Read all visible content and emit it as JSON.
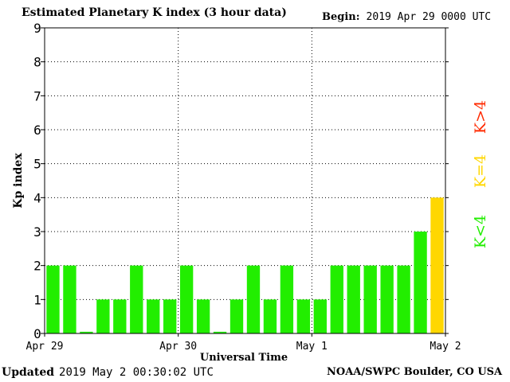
{
  "header": {
    "title": "Estimated Planetary K index (3 hour data)",
    "begin_label": "Begin:",
    "begin_value": "2019 Apr 29 0000 UTC"
  },
  "footer": {
    "updated_label": "Updated",
    "updated_value": "2019 May  2 00:30:02 UTC",
    "source": "NOAA/SWPC Boulder, CO USA"
  },
  "legend": {
    "high": {
      "label": "K>4",
      "color": "#ff2a00"
    },
    "mid": {
      "label": "K=4",
      "color": "#ffd700"
    },
    "low": {
      "label": "K<4",
      "color": "#22ee00"
    }
  },
  "chart_data": {
    "type": "bar",
    "title": "Estimated Planetary K index (3 hour data)",
    "xlabel": "Universal Time",
    "ylabel": "Kp index",
    "ylim": [
      0,
      9
    ],
    "yticks": [
      0,
      1,
      2,
      3,
      4,
      5,
      6,
      7,
      8,
      9
    ],
    "x_tick_labels": [
      "Apr 29",
      "Apr 30",
      "May 1",
      "May 2"
    ],
    "grid": true,
    "interval_hours": 3,
    "values": [
      2,
      2,
      0.05,
      1,
      1,
      2,
      1,
      1,
      2,
      1,
      0.05,
      1,
      2,
      1,
      2,
      1,
      1,
      2,
      2,
      2,
      2,
      2,
      3,
      4
    ]
  }
}
